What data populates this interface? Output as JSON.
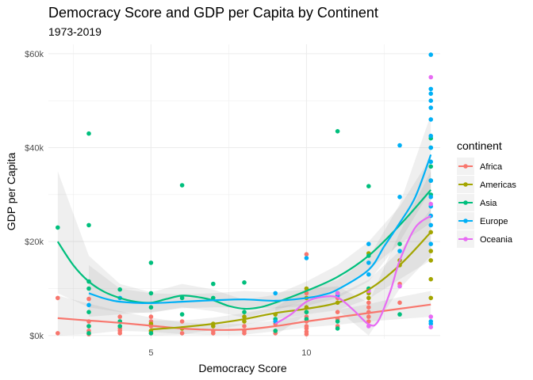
{
  "chart_data": {
    "type": "scatter",
    "title": "Democracy Score and GDP per Capita by Continent",
    "subtitle": "1973-2019",
    "xlabel": "Democracy Score",
    "ylabel": "GDP per Capita",
    "xlim": [
      1.7,
      14.3
    ],
    "ylim": [
      -0.7,
      62
    ],
    "x_ticks": [
      5,
      10
    ],
    "x_tick_labels": [
      "5",
      "10"
    ],
    "y_ticks": [
      0,
      20,
      40,
      60
    ],
    "y_tick_labels": [
      "$0k",
      "$20k",
      "$40k",
      "$60k"
    ],
    "y_unit": "thousand USD",
    "grid": true,
    "legend": {
      "title": "continent",
      "position": "right"
    },
    "series": [
      {
        "name": "Africa",
        "color": "#F8766D",
        "points": [
          [
            2,
            0.5
          ],
          [
            2,
            8
          ],
          [
            3,
            0.3
          ],
          [
            3,
            1
          ],
          [
            3,
            2
          ],
          [
            3,
            3
          ],
          [
            3,
            7.8
          ],
          [
            4,
            0.5
          ],
          [
            4,
            1
          ],
          [
            4,
            1.5
          ],
          [
            4,
            2
          ],
          [
            4,
            3
          ],
          [
            4,
            4
          ],
          [
            5,
            0.5
          ],
          [
            5,
            1
          ],
          [
            5,
            2
          ],
          [
            5,
            3
          ],
          [
            5,
            4
          ],
          [
            6,
            0.5
          ],
          [
            6,
            1.5
          ],
          [
            6,
            3
          ],
          [
            7,
            0.5
          ],
          [
            7,
            1
          ],
          [
            8,
            0.5
          ],
          [
            8,
            1
          ],
          [
            8,
            2
          ],
          [
            9,
            0.5
          ],
          [
            9,
            1
          ],
          [
            9,
            2.5
          ],
          [
            10,
            0.3
          ],
          [
            10,
            0.8
          ],
          [
            10,
            1.5
          ],
          [
            10,
            2
          ],
          [
            10,
            3
          ],
          [
            10,
            4
          ],
          [
            10,
            9
          ],
          [
            10,
            17.3
          ],
          [
            11,
            2
          ],
          [
            11,
            3.5
          ],
          [
            11,
            5
          ],
          [
            11,
            8
          ],
          [
            12,
            3
          ],
          [
            12,
            4
          ],
          [
            12,
            5
          ],
          [
            12,
            6
          ],
          [
            12,
            7
          ],
          [
            13,
            7
          ],
          [
            13,
            11
          ]
        ],
        "smooth": [
          [
            2,
            3.7
          ],
          [
            3,
            3.2
          ],
          [
            4,
            2.7
          ],
          [
            5,
            2.1
          ],
          [
            6,
            1.5
          ],
          [
            7,
            1.2
          ],
          [
            8,
            1.3
          ],
          [
            9,
            2
          ],
          [
            10,
            3
          ],
          [
            11,
            3.9
          ],
          [
            12,
            4.8
          ],
          [
            13,
            5.7
          ],
          [
            14,
            6.6
          ]
        ],
        "band": [
          [
            2,
            0,
            8.5
          ],
          [
            3,
            0.3,
            6.8
          ],
          [
            4,
            1,
            5.2
          ],
          [
            5,
            0.8,
            3.8
          ],
          [
            6,
            0.3,
            2.8
          ],
          [
            7,
            0.1,
            2.4
          ],
          [
            8,
            0.2,
            2.5
          ],
          [
            9,
            0.9,
            3.2
          ],
          [
            10,
            1.7,
            4.4
          ],
          [
            11,
            2.3,
            5.5
          ],
          [
            12,
            3,
            6.7
          ],
          [
            13,
            3.5,
            8.2
          ],
          [
            14,
            4,
            9.5
          ]
        ]
      },
      {
        "name": "Americas",
        "color": "#A3A500",
        "points": [
          [
            5,
            1
          ],
          [
            5,
            2.5
          ],
          [
            6,
            1.5
          ],
          [
            7,
            2
          ],
          [
            7,
            2.5
          ],
          [
            8,
            3
          ],
          [
            8,
            4
          ],
          [
            9,
            4.5
          ],
          [
            10,
            5
          ],
          [
            10,
            6
          ],
          [
            10,
            8
          ],
          [
            10,
            10
          ],
          [
            11,
            7
          ],
          [
            11,
            9
          ],
          [
            12,
            8
          ],
          [
            12,
            9
          ],
          [
            12,
            17.5
          ],
          [
            13,
            15
          ],
          [
            13,
            16
          ],
          [
            14,
            8
          ],
          [
            14,
            12
          ],
          [
            14,
            16
          ],
          [
            14,
            18
          ],
          [
            14,
            22
          ]
        ],
        "smooth": [
          [
            5,
            1.3
          ],
          [
            6,
            1.8
          ],
          [
            7,
            2.5
          ],
          [
            8,
            3.5
          ],
          [
            9,
            4.8
          ],
          [
            10,
            5.7
          ],
          [
            11,
            7
          ],
          [
            12,
            9.8
          ],
          [
            13,
            15
          ],
          [
            14,
            22
          ]
        ],
        "band": [
          [
            5,
            0,
            3.2
          ],
          [
            6,
            0.2,
            3.2
          ],
          [
            7,
            1.2,
            3.8
          ],
          [
            8,
            2.3,
            4.8
          ],
          [
            9,
            3.5,
            6
          ],
          [
            10,
            4.4,
            7.1
          ],
          [
            11,
            5.4,
            8.6
          ],
          [
            12,
            7.8,
            11.9
          ],
          [
            13,
            12,
            18
          ],
          [
            14,
            16,
            27
          ]
        ]
      },
      {
        "name": "Asia",
        "color": "#00BF7D",
        "points": [
          [
            2,
            23
          ],
          [
            3,
            43
          ],
          [
            3,
            23.5
          ],
          [
            3,
            11.5
          ],
          [
            3,
            10
          ],
          [
            3,
            5
          ],
          [
            3,
            2
          ],
          [
            3,
            0.5
          ],
          [
            4,
            9.8
          ],
          [
            4,
            3
          ],
          [
            4,
            2
          ],
          [
            5,
            15.5
          ],
          [
            5,
            9
          ],
          [
            5,
            6
          ],
          [
            5,
            0.5
          ],
          [
            6,
            32
          ],
          [
            6,
            8
          ],
          [
            6,
            4.5
          ],
          [
            7,
            11
          ],
          [
            7,
            8
          ],
          [
            8,
            11.3
          ],
          [
            8,
            5
          ],
          [
            9,
            3.5
          ],
          [
            9,
            1
          ],
          [
            10,
            5
          ],
          [
            10,
            3.5
          ],
          [
            11,
            43.5
          ],
          [
            11,
            3
          ],
          [
            11,
            1.5
          ],
          [
            12,
            31.8
          ],
          [
            12,
            10
          ],
          [
            12,
            17
          ],
          [
            13,
            4.5
          ],
          [
            13,
            19.5
          ],
          [
            14,
            30
          ],
          [
            14,
            33
          ],
          [
            14,
            40
          ],
          [
            14,
            42
          ],
          [
            14,
            36
          ]
        ],
        "smooth": [
          [
            2,
            20
          ],
          [
            2.5,
            15
          ],
          [
            3,
            11.5
          ],
          [
            3.5,
            9.3
          ],
          [
            4,
            8
          ],
          [
            4.5,
            7.2
          ],
          [
            5,
            7
          ],
          [
            5.5,
            7.8
          ],
          [
            6,
            8.5
          ],
          [
            6.5,
            8.2
          ],
          [
            7,
            7.5
          ],
          [
            7.5,
            6.3
          ],
          [
            8,
            5.7
          ],
          [
            8.5,
            6
          ],
          [
            9,
            7
          ],
          [
            10,
            9.5
          ],
          [
            11,
            12.5
          ],
          [
            12,
            17
          ],
          [
            13,
            23.5
          ],
          [
            14,
            31
          ]
        ],
        "band": [
          [
            2,
            9,
            35
          ],
          [
            3,
            6,
            17
          ],
          [
            4,
            5,
            11
          ],
          [
            5,
            4.8,
            9.2
          ],
          [
            6,
            6,
            11
          ],
          [
            7,
            5.2,
            9.8
          ],
          [
            8,
            3.8,
            7.6
          ],
          [
            9,
            5.3,
            8.7
          ],
          [
            10,
            7.5,
            11.5
          ],
          [
            11,
            10,
            15
          ],
          [
            12,
            14,
            20
          ],
          [
            13,
            19.5,
            27.5
          ],
          [
            14,
            24,
            38
          ]
        ]
      },
      {
        "name": "Europe",
        "color": "#00B0F6",
        "points": [
          [
            3,
            6.5
          ],
          [
            4,
            8
          ],
          [
            9,
            3
          ],
          [
            9,
            9
          ],
          [
            10,
            16.5
          ],
          [
            11,
            8.5
          ],
          [
            12,
            13
          ],
          [
            12,
            15.5
          ],
          [
            12,
            19.5
          ],
          [
            13,
            18
          ],
          [
            13,
            29.5
          ],
          [
            13,
            40.5
          ],
          [
            14,
            19.5
          ],
          [
            14,
            23.5
          ],
          [
            14,
            25.5
          ],
          [
            14,
            27.5
          ],
          [
            14,
            29.5
          ],
          [
            14,
            33
          ],
          [
            14,
            37
          ],
          [
            14,
            40
          ],
          [
            14,
            42.5
          ],
          [
            14,
            46
          ],
          [
            14,
            48.5
          ],
          [
            14,
            50
          ],
          [
            14,
            51.5
          ],
          [
            14,
            52.5
          ],
          [
            14,
            59.8
          ],
          [
            14,
            3
          ],
          [
            14,
            2.5
          ]
        ],
        "smooth": [
          [
            3,
            9
          ],
          [
            3.5,
            7.9
          ],
          [
            4,
            7.2
          ],
          [
            5,
            6.9
          ],
          [
            6,
            7.2
          ],
          [
            7,
            7.5
          ],
          [
            8,
            7.7
          ],
          [
            9,
            7.4
          ],
          [
            10,
            8
          ],
          [
            10.5,
            8.6
          ],
          [
            11,
            9.8
          ],
          [
            12,
            14
          ],
          [
            12.5,
            19
          ],
          [
            13,
            24
          ],
          [
            13.5,
            29.5
          ],
          [
            14,
            38.5
          ]
        ],
        "band": [
          [
            3,
            4,
            15
          ],
          [
            4,
            4.5,
            10
          ],
          [
            5,
            5,
            9
          ],
          [
            6,
            5.8,
            8.8
          ],
          [
            7,
            6,
            9
          ],
          [
            8,
            6,
            9.5
          ],
          [
            9,
            5.8,
            9.2
          ],
          [
            10,
            6.3,
            9.8
          ],
          [
            11,
            8,
            11.8
          ],
          [
            12,
            11.5,
            16.5
          ],
          [
            13,
            20,
            28
          ],
          [
            14,
            31,
            47
          ]
        ]
      },
      {
        "name": "Oceania",
        "color": "#E76BF3",
        "points": [
          [
            11,
            9
          ],
          [
            12,
            9.5
          ],
          [
            12,
            2
          ],
          [
            13,
            10.5
          ],
          [
            14,
            55
          ],
          [
            14,
            4
          ],
          [
            14,
            1.8
          ],
          [
            14,
            28
          ]
        ],
        "smooth": [
          [
            9,
            2.5
          ],
          [
            9.5,
            4.5
          ],
          [
            10,
            7.2
          ],
          [
            10.5,
            8.2
          ],
          [
            11,
            8.1
          ],
          [
            11.5,
            5.5
          ],
          [
            12,
            2.4
          ],
          [
            12.3,
            3
          ],
          [
            12.7,
            9.5
          ],
          [
            13,
            16
          ],
          [
            13.5,
            23
          ],
          [
            14,
            25.5
          ]
        ],
        "band": [
          [
            9,
            0,
            6
          ],
          [
            10,
            4.5,
            10
          ],
          [
            11,
            5.5,
            10.5
          ],
          [
            12,
            0,
            7
          ],
          [
            13,
            10,
            22
          ],
          [
            14,
            17,
            35
          ]
        ]
      }
    ]
  }
}
